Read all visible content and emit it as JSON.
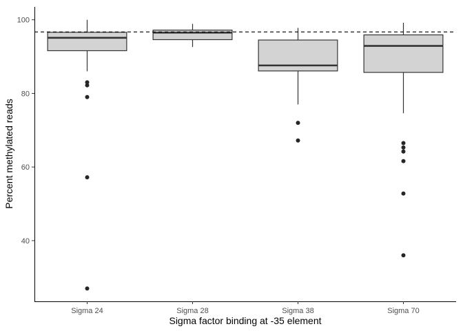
{
  "chart_data": {
    "type": "box",
    "xlabel": "Sigma factor binding at -35 element",
    "ylabel": "Percent methylated reads",
    "categories": [
      "Sigma 24",
      "Sigma 28",
      "Sigma 38",
      "Sigma 70"
    ],
    "ylim": [
      23.5,
      103.5
    ],
    "yticks": [
      40,
      60,
      80,
      100
    ],
    "reference_line": {
      "y": 96.7,
      "style": "dashed"
    },
    "boxes": [
      {
        "category": "Sigma 24",
        "whisker_low": 86.0,
        "q1": 91.6,
        "median": 95.1,
        "q3": 96.6,
        "whisker_high": 100.0,
        "outliers": [
          83.0,
          82.2,
          79.0,
          57.2,
          27.0
        ]
      },
      {
        "category": "Sigma 28",
        "whisker_low": 92.6,
        "q1": 94.6,
        "median": 96.5,
        "q3": 97.2,
        "whisker_high": 98.9,
        "outliers": []
      },
      {
        "category": "Sigma 38",
        "whisker_low": 77.0,
        "q1": 86.1,
        "median": 87.6,
        "q3": 94.5,
        "whisker_high": 97.8,
        "outliers": [
          72.0,
          67.2
        ]
      },
      {
        "category": "Sigma 70",
        "whisker_low": 74.6,
        "q1": 85.7,
        "median": 92.9,
        "q3": 95.9,
        "whisker_high": 99.2,
        "outliers": [
          66.5,
          65.3,
          64.2,
          61.6,
          52.8,
          36.0
        ]
      }
    ],
    "colors": {
      "box_fill": "#d3d3d3",
      "box_stroke": "#333333",
      "point": "#262626",
      "axis": "#000000"
    },
    "grid": false,
    "legend": "none"
  }
}
